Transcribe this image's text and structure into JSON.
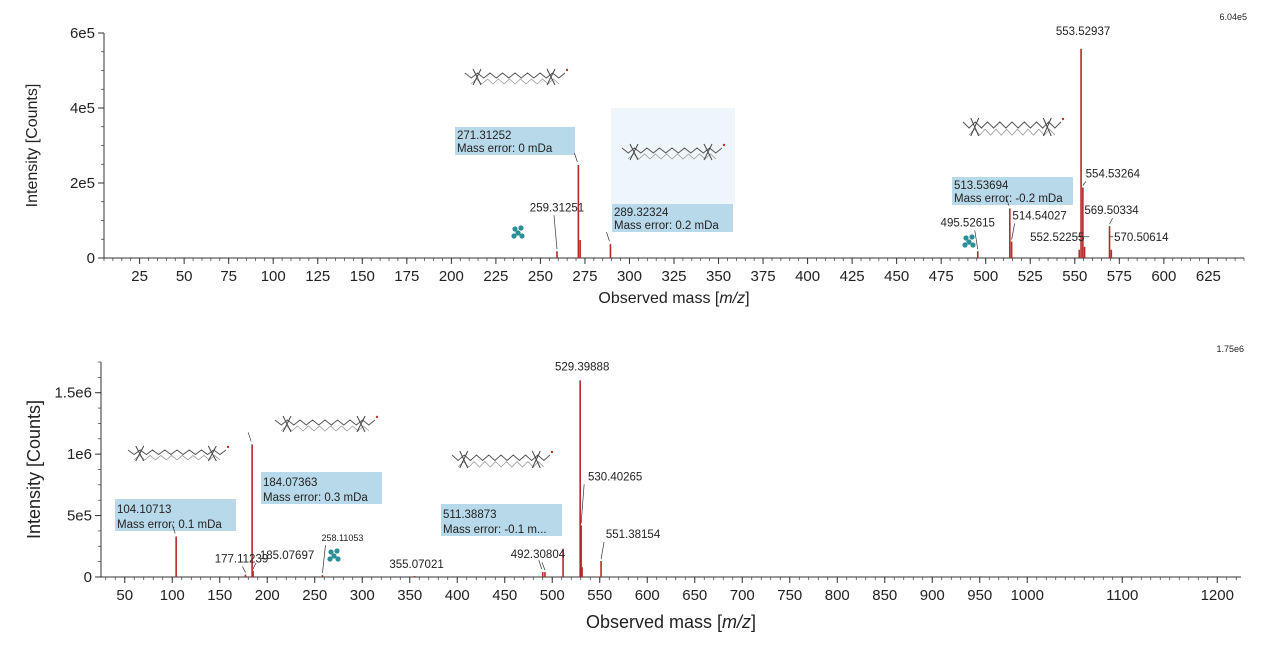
{
  "colors": {
    "peak": "#b22a2a",
    "annotation_box": "#b8d9ea",
    "molecule_box": "#eef5fb",
    "axis": "#333333",
    "marker": "#2a8f96"
  },
  "icons": [
    "molecule-structure-icon",
    "fragment-cluster-icon"
  ],
  "chart_data": [
    {
      "type": "bar",
      "title": "",
      "max_intensity_label": "6.04e5",
      "xlabel_pre": "Observed mass [",
      "xlabel_italic": "m/z",
      "xlabel_post": "]",
      "ylabel": "Intensity [Counts]",
      "xlim": [
        5,
        645
      ],
      "ylim": [
        0,
        600000
      ],
      "xticks": [
        25,
        50,
        75,
        100,
        125,
        150,
        175,
        200,
        225,
        250,
        275,
        300,
        325,
        350,
        375,
        400,
        425,
        450,
        475,
        500,
        525,
        550,
        575,
        600,
        625
      ],
      "xtick_labels": [
        "25",
        "50",
        "75",
        "100",
        "125",
        "150",
        "175",
        "200",
        "225",
        "250",
        "275",
        "300",
        "325",
        "350",
        "375",
        "400",
        "425",
        "450",
        "475",
        "500",
        "525",
        "550",
        "575",
        "600",
        "625"
      ],
      "yticks": [
        0,
        200000,
        400000,
        600000
      ],
      "ytick_labels": [
        "0",
        "2e5",
        "4e5",
        "6e5"
      ],
      "peaks": [
        {
          "x": 259.31251,
          "y": 18000,
          "label": "259.31251"
        },
        {
          "x": 271.31252,
          "y": 248000,
          "label": ""
        },
        {
          "x": 272.3,
          "y": 48000,
          "label": ""
        },
        {
          "x": 289.32324,
          "y": 37000,
          "label": ""
        },
        {
          "x": 495.52615,
          "y": 18000,
          "label": "495.52615"
        },
        {
          "x": 513.53694,
          "y": 132000,
          "label": ""
        },
        {
          "x": 514.54027,
          "y": 44000,
          "label": "514.54027"
        },
        {
          "x": 552.52255,
          "y": 22000,
          "label": "552.52255"
        },
        {
          "x": 553.52937,
          "y": 558000,
          "label": "553.52937"
        },
        {
          "x": 554.53264,
          "y": 188000,
          "label": "554.53264"
        },
        {
          "x": 555.5,
          "y": 30000,
          "label": ""
        },
        {
          "x": 569.50334,
          "y": 85000,
          "label": "569.50334"
        },
        {
          "x": 570.50614,
          "y": 22000,
          "label": "570.50614"
        }
      ],
      "annotations": [
        {
          "line1": "271.31252",
          "line2": "Mass error: 0 mDa"
        },
        {
          "line1": "289.32324",
          "line2": "Mass error: 0.2 mDa"
        },
        {
          "line1": "513.53694",
          "line2": "Mass error: -0.2 mDa"
        }
      ]
    },
    {
      "type": "bar",
      "title": "",
      "max_intensity_label": "1.75e6",
      "xlabel_pre": "Observed mass [",
      "xlabel_italic": "m/z",
      "xlabel_post": "]",
      "ylabel": "Intensity [Counts]",
      "xlim": [
        25,
        1225
      ],
      "ylim": [
        0,
        1750000
      ],
      "xticks": [
        50,
        100,
        150,
        200,
        250,
        300,
        350,
        400,
        450,
        500,
        550,
        600,
        650,
        700,
        750,
        800,
        850,
        900,
        950,
        1000,
        1100,
        1200
      ],
      "xtick_labels": [
        "50",
        "100",
        "150",
        "200",
        "250",
        "300",
        "350",
        "400",
        "450",
        "500",
        "550",
        "600",
        "650",
        "700",
        "750",
        "800",
        "850",
        "900",
        "950",
        "1000",
        "1100",
        "1200"
      ],
      "yticks": [
        0,
        500000,
        1000000,
        1500000
      ],
      "ytick_labels": [
        "0",
        "5e5",
        "1e6",
        "1.5e6"
      ],
      "peaks": [
        {
          "x": 104.10713,
          "y": 330000,
          "label": ""
        },
        {
          "x": 177.11239,
          "y": 20000,
          "label": "177.11239"
        },
        {
          "x": 184.07363,
          "y": 1080000,
          "label": ""
        },
        {
          "x": 185.07697,
          "y": 50000,
          "label": "185.07697"
        },
        {
          "x": 258.11053,
          "y": 15000,
          "label": "258.11053"
        },
        {
          "x": 355.07021,
          "y": 8000,
          "label": "355.07021"
        },
        {
          "x": 490.0,
          "y": 40000,
          "label": ""
        },
        {
          "x": 492.30804,
          "y": 40000,
          "label": "492.30804"
        },
        {
          "x": 511.38873,
          "y": 230000,
          "label": ""
        },
        {
          "x": 529.39888,
          "y": 1600000,
          "label": "529.39888"
        },
        {
          "x": 530.40265,
          "y": 420000,
          "label": "530.40265"
        },
        {
          "x": 531.4,
          "y": 80000,
          "label": ""
        },
        {
          "x": 551.38154,
          "y": 130000,
          "label": "551.38154"
        }
      ],
      "annotations": [
        {
          "line1": "104.10713",
          "line2": "Mass error: 0.1 mDa"
        },
        {
          "line1": "184.07363",
          "line2": "Mass error: 0.3 mDa"
        },
        {
          "line1": "511.38873",
          "line2": "Mass error: -0.1 m..."
        }
      ]
    }
  ]
}
